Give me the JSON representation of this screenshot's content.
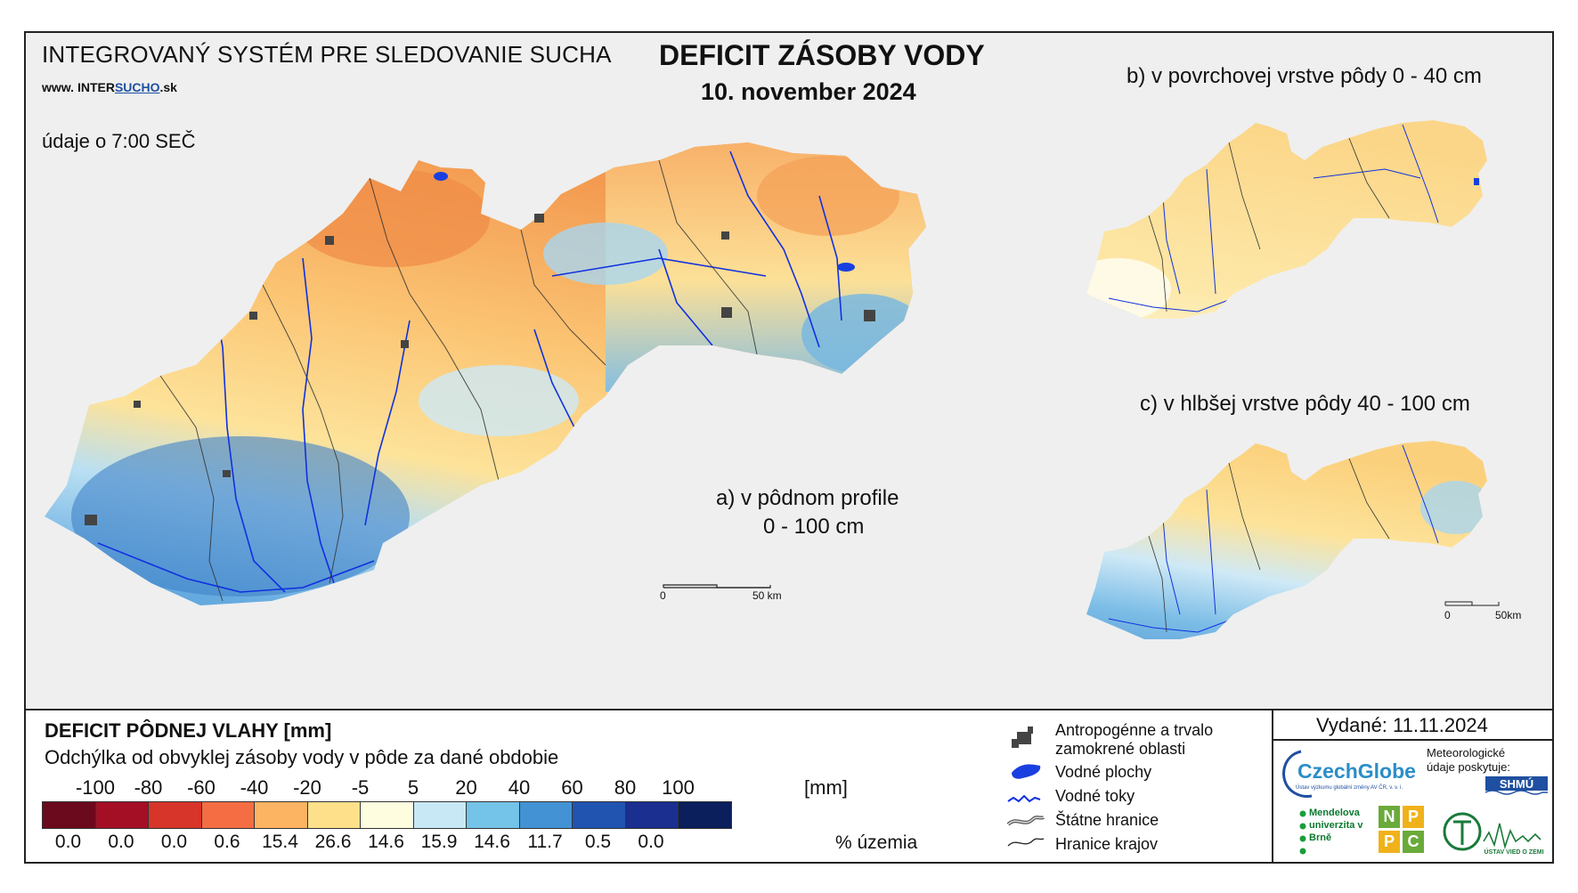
{
  "header": {
    "system_title": "INTEGROVANÝ SYSTÉM PRE SLEDOVANIE SUCHA",
    "website_prefix": "www.",
    "website_name_a": "INTER",
    "website_name_b": "SUCHO",
    "website_suffix": ".sk",
    "time_note": "údaje o 7:00 SEČ",
    "title": "DEFICIT ZÁSOBY VODY",
    "date": "10. november 2024"
  },
  "maps": {
    "a_label_line1": "a) v pôdnom profile",
    "a_label_line2": "0 - 100 cm",
    "b_label": "b) v povrchovej vrstve pôdy 0 - 40 cm",
    "c_label": "c) v hlbšej vrstve pôdy 40 - 100 cm",
    "scale_main_zero": "0",
    "scale_main_end": "50 km",
    "scale_small_zero": "0",
    "scale_small_end": "50km"
  },
  "legend": {
    "title": "DEFICIT PÔDNEJ VLAHY [mm]",
    "subtitle": "Odchýlka od obvyklej zásoby vody v pôde za dané obdobie",
    "unit": "[mm]",
    "pct_unit": "% územia",
    "class_labels": [
      "-100",
      "-80",
      "-60",
      "-40",
      "-20",
      "-5",
      "5",
      "20",
      "40",
      "60",
      "80",
      "100"
    ],
    "colors": [
      "#6b0a1c",
      "#a50f26",
      "#d7342a",
      "#f46d43",
      "#fdb462",
      "#fee08b",
      "#fefde0",
      "#c9e8f6",
      "#74c3e8",
      "#4392d3",
      "#2153b0",
      "#1a2f8f",
      "#0b1f5c"
    ],
    "percentages": [
      "0.0",
      "0.0",
      "0.0",
      "0.6",
      "15.4",
      "26.6",
      "14.6",
      "15.9",
      "14.6",
      "11.7",
      "0.5",
      "0.0"
    ]
  },
  "symbols": {
    "urban": "Antropogénne a trvalo zamokrené oblasti",
    "water_bodies": "Vodné plochy",
    "streams": "Vodné toky",
    "state_border": "Štátne hranice",
    "region_border": "Hranice krajov"
  },
  "issued": {
    "label": "Vydané: 11.11.2024"
  },
  "logos": {
    "czechglobe": "CzechGlobe",
    "czechglobe_sub": "Ústav výzkumu globální změny AV ČR, v. v. i.",
    "meteo_note": "Meteorologické údaje poskytuje:",
    "shmu": "SHMÚ",
    "mendel": "Mendelova univerzita v Brně",
    "nppc_letters": [
      "N",
      "P",
      "P",
      "C"
    ],
    "uvz": "ÚSTAV VIED O ZEMI"
  }
}
